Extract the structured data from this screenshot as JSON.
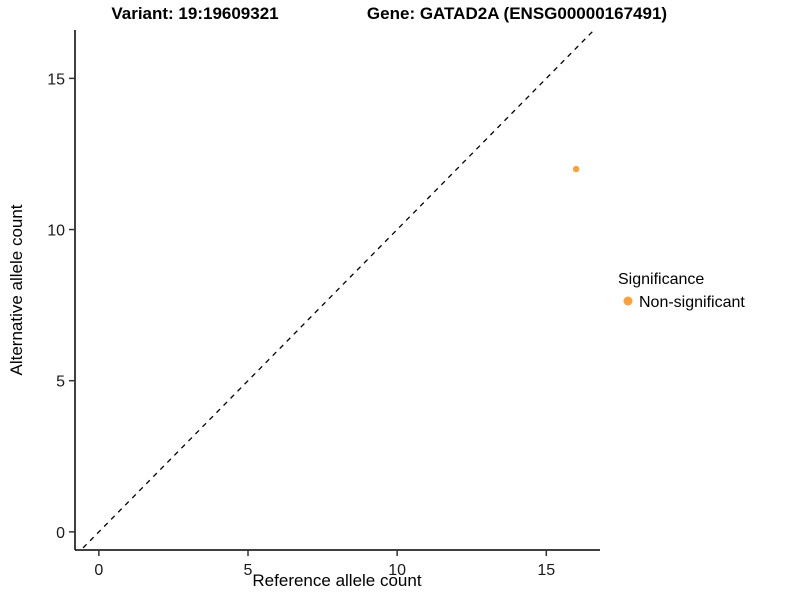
{
  "titles": {
    "variant": "Variant: 19:19609321",
    "gene": "Gene: GATAD2A (ENSG00000167491)"
  },
  "chart_data": {
    "type": "scatter",
    "title_left": "Variant: 19:19609321",
    "title_right": "Gene: GATAD2A (ENSG00000167491)",
    "xlabel": "Reference allele count",
    "ylabel": "Alternative allele count",
    "xlim": [
      -0.8,
      16.8
    ],
    "ylim": [
      -0.6,
      16.6
    ],
    "xticks": [
      0,
      5,
      10,
      15
    ],
    "yticks": [
      0,
      5,
      10,
      15
    ],
    "grid": false,
    "identity_line": {
      "style": "dashed",
      "from": [
        -1,
        -1
      ],
      "to": [
        17.5,
        17.5
      ]
    },
    "series": [
      {
        "name": "Non-significant",
        "color": "#F9A03F",
        "point_radius": 3.2,
        "points": [
          [
            16,
            12
          ]
        ]
      }
    ],
    "legend": {
      "title": "Significance",
      "position": "right",
      "entries": [
        {
          "label": "Non-significant",
          "color": "#F9A03F"
        }
      ]
    }
  }
}
